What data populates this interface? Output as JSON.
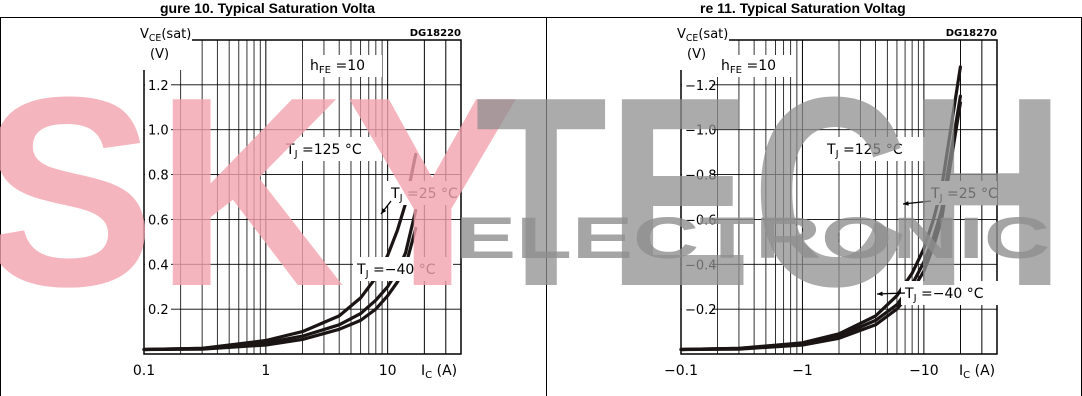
{
  "header": {
    "left_fragment": "gure 10. Typical Saturation Volta",
    "right_fragment": "re 11. Typical Saturation Voltag"
  },
  "watermark": {
    "brand": "SKYTECH",
    "sub": "ELECTRONIC",
    "colors": {
      "red": "#f2a3ae",
      "gray": "#8f8f8f"
    }
  },
  "chart_data": [
    {
      "type": "line",
      "code": "DG18220",
      "ylabel": "VCE(sat)",
      "yunit": "(V)",
      "xlabel": "IC (A)",
      "x_scale": "log",
      "xlim": [
        0.1,
        40
      ],
      "ylim": [
        0,
        1.4
      ],
      "x_tick_labels": [
        "0.1",
        "1",
        "10"
      ],
      "y_tick_labels": [
        "0.2",
        "0.4",
        "0.6",
        "0.8",
        "1.0",
        "1.2"
      ],
      "annotation": "hFE =10",
      "grid": true,
      "series": [
        {
          "name": "TJ =125 °C",
          "x": [
            0.1,
            0.3,
            1,
            2,
            4,
            6,
            8,
            10,
            12,
            14,
            17
          ],
          "y": [
            0.02,
            0.025,
            0.06,
            0.1,
            0.17,
            0.25,
            0.34,
            0.44,
            0.55,
            0.67,
            0.89
          ]
        },
        {
          "name": "TJ =25 °C",
          "x": [
            0.1,
            0.3,
            1,
            2,
            4,
            6,
            8,
            10,
            12,
            14,
            17
          ],
          "y": [
            0.02,
            0.025,
            0.05,
            0.08,
            0.13,
            0.18,
            0.24,
            0.3,
            0.37,
            0.45,
            0.64
          ]
        },
        {
          "name": "TJ =−40 °C",
          "x": [
            0.1,
            0.3,
            1,
            2,
            4,
            6,
            8,
            10,
            12,
            14,
            17
          ],
          "y": [
            0.02,
            0.022,
            0.04,
            0.065,
            0.11,
            0.15,
            0.2,
            0.26,
            0.32,
            0.39,
            0.56
          ]
        }
      ]
    },
    {
      "type": "line",
      "code": "DG18270",
      "ylabel": "VCE(sat)",
      "yunit": "(V)",
      "xlabel": "IC (A)",
      "x_scale": "log",
      "xlim": [
        -0.1,
        -40
      ],
      "ylim": [
        0,
        -1.4
      ],
      "x_tick_labels": [
        "−0.1",
        "−1",
        "−10"
      ],
      "y_tick_labels": [
        "−0.2",
        "−0.4",
        "−0.6",
        "−0.8",
        "−1.0",
        "−1.2"
      ],
      "annotation": "hFE =10",
      "grid": true,
      "series": [
        {
          "name": "TJ =125 °C",
          "x": [
            -0.1,
            -0.3,
            -1,
            -2,
            -4,
            -6,
            -8,
            -10,
            -12,
            -14,
            -20
          ],
          "y": [
            -0.02,
            -0.025,
            -0.05,
            -0.09,
            -0.17,
            -0.26,
            -0.36,
            -0.47,
            -0.6,
            -0.74,
            -1.28
          ]
        },
        {
          "name": "TJ =25 °C",
          "x": [
            -0.1,
            -0.3,
            -1,
            -2,
            -4,
            -6,
            -8,
            -10,
            -12,
            -14,
            -20
          ],
          "y": [
            -0.02,
            -0.025,
            -0.045,
            -0.08,
            -0.15,
            -0.22,
            -0.31,
            -0.41,
            -0.52,
            -0.64,
            -1.15
          ]
        },
        {
          "name": "TJ =−40 °C",
          "x": [
            -0.1,
            -0.3,
            -1,
            -2,
            -4,
            -6,
            -8,
            -10,
            -12,
            -14,
            -20
          ],
          "y": [
            -0.02,
            -0.022,
            -0.04,
            -0.07,
            -0.13,
            -0.2,
            -0.28,
            -0.37,
            -0.48,
            -0.6,
            -1.12
          ]
        }
      ]
    }
  ]
}
